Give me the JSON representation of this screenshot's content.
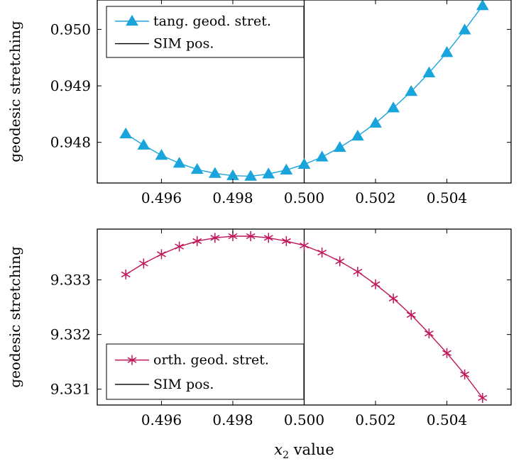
{
  "chart_data": [
    {
      "type": "line",
      "xlabel": "",
      "ylabel": "geodesic stretching",
      "xlim": [
        0.4942,
        0.5058
      ],
      "ylim": [
        0.94728,
        0.95052
      ],
      "xticks": [
        0.496,
        0.498,
        0.5,
        0.502,
        0.504
      ],
      "xtick_labels": [
        "0.496",
        "0.498",
        "0.500",
        "0.502",
        "0.504"
      ],
      "yticks": [
        0.948,
        0.949,
        0.95
      ],
      "ytick_labels": [
        "0.948",
        "0.949",
        "0.950"
      ],
      "legend_position": "top-left",
      "series": [
        {
          "name": "tang. geod. stret.",
          "color": "#1AA4DC",
          "marker": "triangle",
          "x": [
            0.495,
            0.4955,
            0.496,
            0.4965,
            0.497,
            0.4975,
            0.498,
            0.4985,
            0.499,
            0.4995,
            0.5,
            0.5005,
            0.501,
            0.5015,
            0.502,
            0.5025,
            0.503,
            0.5035,
            0.504,
            0.5045,
            0.505
          ],
          "y": [
            0.94815,
            0.94795,
            0.94777,
            0.94763,
            0.94752,
            0.94745,
            0.94741,
            0.9474,
            0.94744,
            0.94751,
            0.94761,
            0.94774,
            0.94791,
            0.94811,
            0.94834,
            0.94861,
            0.9489,
            0.94923,
            0.94959,
            0.94999,
            0.95042
          ]
        },
        {
          "name": "SIM pos.",
          "color": "#000000",
          "vline_x": 0.5
        }
      ]
    },
    {
      "type": "line",
      "xlabel": "x2 value",
      "xlabel_parts": {
        "main": "x",
        "sub": "2",
        "rest": " value"
      },
      "ylabel": "geodesic stretching",
      "xlim": [
        0.4942,
        0.5058
      ],
      "ylim": [
        9.33071,
        9.33393
      ],
      "xticks": [
        0.496,
        0.498,
        0.5,
        0.502,
        0.504
      ],
      "xtick_labels": [
        "0.496",
        "0.498",
        "0.500",
        "0.502",
        "0.504"
      ],
      "yticks": [
        9.331,
        9.332,
        9.333
      ],
      "ytick_labels": [
        "9.331",
        "9.332",
        "9.333"
      ],
      "legend_position": "bottom-left",
      "series": [
        {
          "name": "orth. geod. stret.",
          "color": "#C0155A",
          "marker": "asterisk",
          "x": [
            0.495,
            0.4955,
            0.496,
            0.4965,
            0.497,
            0.4975,
            0.498,
            0.4985,
            0.499,
            0.4995,
            0.5,
            0.5005,
            0.501,
            0.5015,
            0.502,
            0.5025,
            0.503,
            0.5035,
            0.504,
            0.5045,
            0.505
          ],
          "y": [
            9.3331,
            9.3333,
            9.33347,
            9.33361,
            9.33371,
            9.33377,
            9.3338,
            9.3338,
            9.33377,
            9.33371,
            9.33363,
            9.3335,
            9.33334,
            9.33315,
            9.33292,
            9.33266,
            9.33236,
            9.33202,
            9.33166,
            9.33127,
            9.33084
          ]
        },
        {
          "name": "SIM pos.",
          "color": "#000000",
          "vline_x": 0.5
        }
      ]
    }
  ]
}
